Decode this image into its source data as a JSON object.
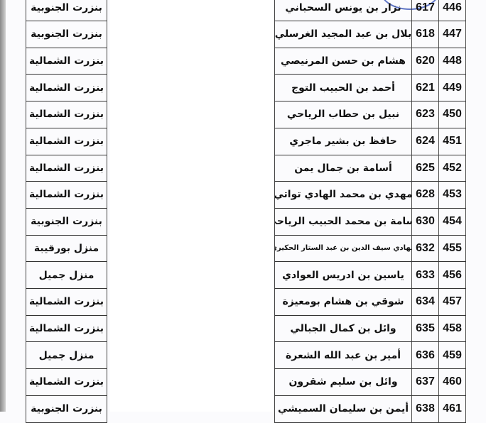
{
  "stamp_color": "#3a55b8",
  "rows": [
    {
      "index": "446",
      "number": "617",
      "name": "نزار بن يونس السحباني",
      "region": "بنزرت الجنوبية"
    },
    {
      "index": "447",
      "number": "618",
      "name": "بلال بن عبد المجيد الغرسلي",
      "region": "بنزرت الجنوبية"
    },
    {
      "index": "448",
      "number": "620",
      "name": "هشام بن حسن المرنيصي",
      "region": "بنزرت الشمالية"
    },
    {
      "index": "449",
      "number": "621",
      "name": "أحمد بن الحبيب التوج",
      "region": "بنزرت الشمالية"
    },
    {
      "index": "450",
      "number": "623",
      "name": "نبيل بن حطاب الرياحي",
      "region": "بنزرت الشمالية"
    },
    {
      "index": "451",
      "number": "624",
      "name": "حافظ بن بشير ماجري",
      "region": "بنزرت الشمالية"
    },
    {
      "index": "452",
      "number": "625",
      "name": "أسامة بن جمال يمن",
      "region": "بنزرت الشمالية"
    },
    {
      "index": "453",
      "number": "628",
      "name": "مهدي بن محمد الهادي تواتي",
      "region": "بنزرت الشمالية"
    },
    {
      "index": "454",
      "number": "630",
      "name": "أسامة بن محمد الحبيب الرياحي",
      "region": "بنزرت الجنوبية"
    },
    {
      "index": "455",
      "number": "632",
      "name": "الهادي سيف الدين بن عبد الستار الحكيري",
      "region": "منزل بورقيبة"
    },
    {
      "index": "456",
      "number": "633",
      "name": "ياسين بن ادريس العوادي",
      "region": "منزل جميل"
    },
    {
      "index": "457",
      "number": "634",
      "name": "شوقي بن هشام بومعيزة",
      "region": "بنزرت الشمالية"
    },
    {
      "index": "458",
      "number": "635",
      "name": "وائل بن كمال الجبالي",
      "region": "بنزرت الشمالية"
    },
    {
      "index": "459",
      "number": "636",
      "name": "أمير بن عبد الله الشعرة",
      "region": "منزل جميل"
    },
    {
      "index": "460",
      "number": "637",
      "name": "وائل بن سليم شقرون",
      "region": "بنزرت الشمالية"
    },
    {
      "index": "461",
      "number": "638",
      "name": "أيمن بن سليمان السميشي",
      "region": "بنزرت الجنوبية"
    }
  ]
}
